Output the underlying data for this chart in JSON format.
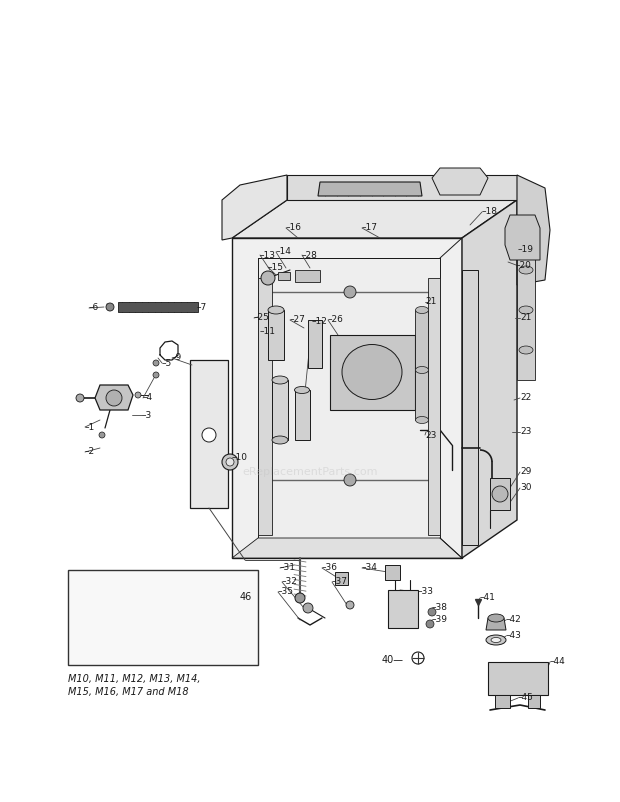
{
  "bg_color": "#ffffff",
  "line_color": "#1a1a1a",
  "gray_light": "#d8d8d8",
  "gray_mid": "#b0b0b0",
  "gray_dark": "#707070",
  "watermark": "eReplacementParts.com",
  "fig_width": 6.2,
  "fig_height": 8.02,
  "dpi": 100,
  "inset_caption": "M10, M11, M12, M13, M14,\nM15, M16, M17 and M18"
}
